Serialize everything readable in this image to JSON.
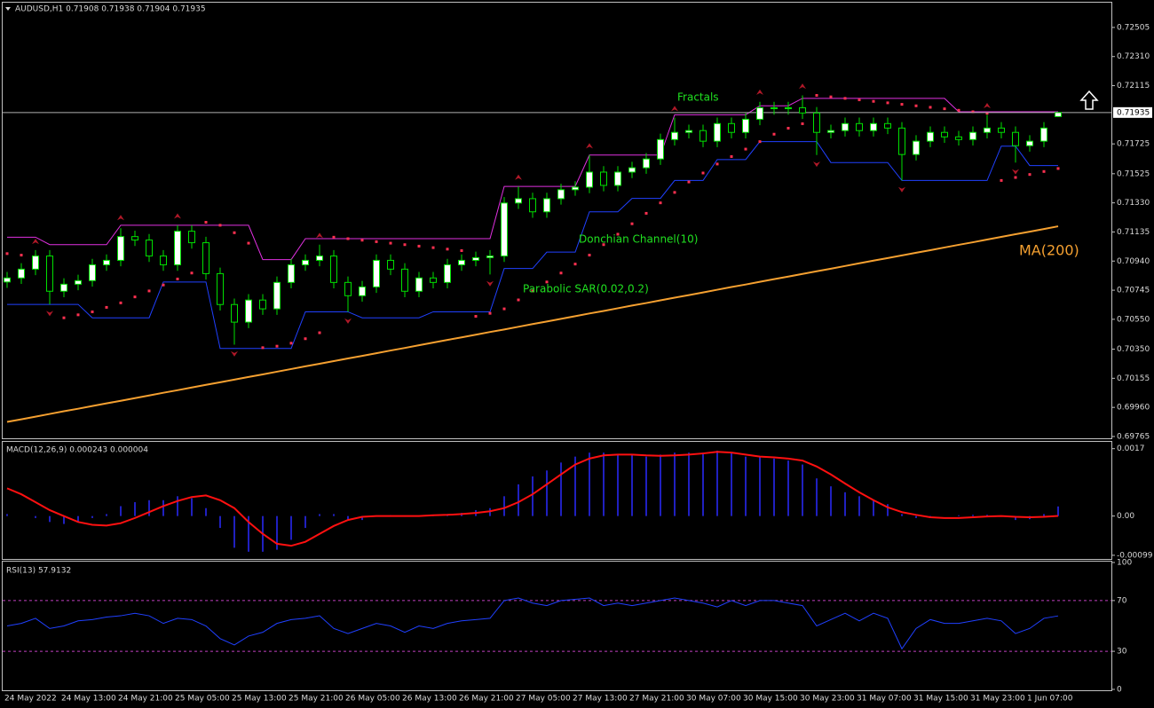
{
  "chart_data": [
    {
      "type": "candlestick",
      "title": "AUDUSD,H1  0.71908 0.71938 0.71904 0.71935",
      "categories": [
        "24 May 2022",
        null,
        null,
        null,
        "24 May 13:00",
        null,
        null,
        null,
        "24 May 21:00",
        null,
        null,
        null,
        "25 May 05:00",
        null,
        null,
        null,
        "25 May 13:00",
        null,
        null,
        null,
        "25 May 21:00",
        null,
        null,
        null,
        "26 May 05:00",
        null,
        null,
        null,
        "26 May 13:00",
        null,
        null,
        null,
        "26 May 21:00",
        null,
        null,
        null,
        "27 May 05:00",
        null,
        null,
        null,
        "27 May 13:00",
        null,
        null,
        null,
        "27 May 21:00",
        null,
        null,
        null,
        "30 May 07:00",
        null,
        null,
        null,
        "30 May 15:00",
        null,
        null,
        null,
        "30 May 23:00",
        null,
        null,
        null,
        "31 May 07:00",
        null,
        null,
        null,
        "31 May 15:00",
        null,
        null,
        null,
        "31 May 23:00",
        null,
        null,
        null,
        "1 Jun 07:00",
        null,
        null
      ],
      "open": [
        0.708,
        0.70827,
        0.70886,
        0.70974,
        0.70738,
        0.70785,
        0.70809,
        0.70915,
        0.70945,
        0.71104,
        0.71081,
        0.70974,
        0.70915,
        0.7114,
        0.71063,
        0.70856,
        0.70649,
        0.70531,
        0.70679,
        0.7062,
        0.70797,
        0.70915,
        0.70945,
        0.70974,
        0.70797,
        0.70708,
        0.70767,
        0.70945,
        0.70886,
        0.70738,
        0.70827,
        0.70797,
        0.70915,
        0.70945,
        0.70963,
        0.70974,
        0.71329,
        0.71358,
        0.7127,
        0.71358,
        0.71418,
        0.71435,
        0.71536,
        0.71447,
        0.71536,
        0.71565,
        0.71624,
        0.71754,
        0.71802,
        0.71814,
        0.71743,
        0.71861,
        0.71802,
        0.7189,
        0.71967,
        0.71961,
        0.71967,
        0.71932,
        0.71802,
        0.71814,
        0.71861,
        0.71814,
        0.71861,
        0.71831,
        0.71654,
        0.71743,
        0.71802,
        0.71772,
        0.71754,
        0.71802,
        0.71831,
        0.71802,
        0.71713,
        0.71743,
        0.71908
      ],
      "high": [
        0.70867,
        0.70926,
        0.71014,
        0.71014,
        0.70825,
        0.70849,
        0.70955,
        0.70985,
        0.7116,
        0.71144,
        0.71121,
        0.71014,
        0.7118,
        0.7118,
        0.71103,
        0.70896,
        0.70689,
        0.70719,
        0.70719,
        0.70837,
        0.70955,
        0.70985,
        0.7105,
        0.71014,
        0.70837,
        0.70807,
        0.70985,
        0.70985,
        0.70926,
        0.70867,
        0.70867,
        0.70955,
        0.70985,
        0.71003,
        0.71014,
        0.71369,
        0.7144,
        0.71398,
        0.71398,
        0.71458,
        0.71475,
        0.7165,
        0.71576,
        0.71576,
        0.71605,
        0.71664,
        0.71794,
        0.719,
        0.71854,
        0.71854,
        0.71901,
        0.71901,
        0.7193,
        0.72007,
        0.72007,
        0.72007,
        0.7205,
        0.71972,
        0.71854,
        0.71901,
        0.71901,
        0.71901,
        0.71901,
        0.71871,
        0.71783,
        0.71842,
        0.71842,
        0.71812,
        0.71842,
        0.7192,
        0.71871,
        0.71842,
        0.71783,
        0.71871,
        0.71938
      ],
      "low": [
        0.7076,
        0.70787,
        0.70846,
        0.7065,
        0.70698,
        0.70745,
        0.70769,
        0.70875,
        0.70905,
        0.71041,
        0.70934,
        0.70875,
        0.70875,
        0.71023,
        0.70816,
        0.70609,
        0.7038,
        0.70491,
        0.7058,
        0.7058,
        0.70757,
        0.70875,
        0.70905,
        0.70757,
        0.706,
        0.70668,
        0.70727,
        0.70846,
        0.70698,
        0.70698,
        0.70757,
        0.70757,
        0.70875,
        0.70905,
        0.7085,
        0.70934,
        0.71289,
        0.7123,
        0.7123,
        0.71318,
        0.71378,
        0.71395,
        0.71407,
        0.71407,
        0.71496,
        0.71525,
        0.71584,
        0.71714,
        0.71762,
        0.71703,
        0.71703,
        0.71762,
        0.71762,
        0.7185,
        0.71921,
        0.71921,
        0.71892,
        0.7165,
        0.71762,
        0.71774,
        0.71774,
        0.71774,
        0.71791,
        0.7148,
        0.71614,
        0.71703,
        0.71732,
        0.71714,
        0.71714,
        0.71762,
        0.71762,
        0.716,
        0.71673,
        0.71703,
        0.71904
      ],
      "close": [
        0.70827,
        0.70886,
        0.70974,
        0.70738,
        0.70785,
        0.70809,
        0.70915,
        0.70945,
        0.71104,
        0.71081,
        0.70974,
        0.70915,
        0.7114,
        0.71063,
        0.70856,
        0.70649,
        0.70531,
        0.70679,
        0.7062,
        0.70797,
        0.70915,
        0.70945,
        0.70974,
        0.70797,
        0.70708,
        0.70767,
        0.70945,
        0.70886,
        0.70738,
        0.70827,
        0.70797,
        0.70915,
        0.70945,
        0.70963,
        0.70974,
        0.71329,
        0.71358,
        0.7127,
        0.71358,
        0.71418,
        0.71435,
        0.71536,
        0.71447,
        0.71536,
        0.71565,
        0.71624,
        0.71754,
        0.71802,
        0.71814,
        0.71743,
        0.71861,
        0.71802,
        0.7189,
        0.71967,
        0.71961,
        0.71967,
        0.71932,
        0.71802,
        0.71814,
        0.71861,
        0.71814,
        0.71861,
        0.71831,
        0.71654,
        0.71743,
        0.71802,
        0.71772,
        0.71754,
        0.71802,
        0.71831,
        0.71802,
        0.71713,
        0.71743,
        0.71831,
        0.71935
      ],
      "up_color": "#ffffff",
      "down_color": "#000000",
      "candle_stroke": "#00e000",
      "ma": {
        "name": "MA(200)",
        "color": "#f5a030",
        "values": [
          0.69863,
          0.6988,
          0.69898,
          0.69916,
          0.69934,
          0.69951,
          0.69969,
          0.69987,
          0.70004,
          0.70022,
          0.7004,
          0.70058,
          0.70075,
          0.70093,
          0.70111,
          0.70128,
          0.70146,
          0.70164,
          0.70181,
          0.70199,
          0.70217,
          0.70235,
          0.70252,
          0.7027,
          0.70288,
          0.70305,
          0.70323,
          0.70341,
          0.70358,
          0.70376,
          0.70394,
          0.70412,
          0.70429,
          0.70447,
          0.70465,
          0.70482,
          0.705,
          0.70518,
          0.70535,
          0.70553,
          0.70571,
          0.70589,
          0.70606,
          0.70624,
          0.70642,
          0.70659,
          0.70677,
          0.70695,
          0.70712,
          0.7073,
          0.70748,
          0.70766,
          0.70783,
          0.70801,
          0.70819,
          0.70836,
          0.70854,
          0.70872,
          0.70889,
          0.70907,
          0.70925,
          0.70943,
          0.7096,
          0.70978,
          0.70996,
          0.71013,
          0.71031,
          0.71049,
          0.71066,
          0.71084,
          0.71102,
          0.7112,
          0.71137,
          0.71155,
          0.71173
        ]
      },
      "donchian": {
        "name": "Donchian Channel(10)",
        "upper_color": "#e030e0",
        "lower_color": "#2040ff",
        "upper": [
          0.711,
          0.711,
          0.711,
          0.7105,
          0.7105,
          0.7105,
          0.7105,
          0.7105,
          0.7118,
          0.7118,
          0.7118,
          0.7118,
          0.7118,
          0.7118,
          0.7118,
          0.7118,
          0.7118,
          0.7118,
          0.7095,
          0.7095,
          0.7095,
          0.7109,
          0.7109,
          0.7109,
          0.7109,
          0.7109,
          0.7109,
          0.7109,
          0.7109,
          0.7109,
          0.7109,
          0.7109,
          0.7109,
          0.7109,
          0.7109,
          0.7144,
          0.7144,
          0.7144,
          0.7144,
          0.7144,
          0.7144,
          0.7165,
          0.7165,
          0.7165,
          0.7165,
          0.7165,
          0.7165,
          0.7192,
          0.7192,
          0.7192,
          0.7192,
          0.7192,
          0.7192,
          0.7198,
          0.7198,
          0.7198,
          0.7203,
          0.7203,
          0.7203,
          0.7203,
          0.7203,
          0.7203,
          0.7203,
          0.7203,
          0.7203,
          0.7203,
          0.7203,
          0.7194,
          0.7194,
          0.7194,
          0.7194,
          0.7194,
          0.7194,
          0.7194,
          0.7194
        ],
        "lower": [
          0.7065,
          0.7065,
          0.7065,
          0.7065,
          0.7065,
          0.7065,
          0.7056,
          0.7056,
          0.7056,
          0.7056,
          0.7056,
          0.708,
          0.708,
          0.708,
          0.708,
          0.70355,
          0.70355,
          0.70355,
          0.70355,
          0.70355,
          0.70355,
          0.706,
          0.706,
          0.706,
          0.706,
          0.7056,
          0.7056,
          0.7056,
          0.7056,
          0.7056,
          0.706,
          0.706,
          0.706,
          0.706,
          0.706,
          0.7089,
          0.7089,
          0.7089,
          0.71,
          0.71,
          0.71,
          0.7127,
          0.7127,
          0.7127,
          0.7136,
          0.7136,
          0.7136,
          0.7148,
          0.7148,
          0.7148,
          0.7162,
          0.7162,
          0.7162,
          0.7174,
          0.7174,
          0.7174,
          0.7174,
          0.7174,
          0.716,
          0.716,
          0.716,
          0.716,
          0.716,
          0.7148,
          0.7148,
          0.7148,
          0.7148,
          0.7148,
          0.7148,
          0.7148,
          0.7171,
          0.7171,
          0.7158,
          0.7158,
          0.7158
        ]
      },
      "sar": {
        "name": "Parabolic SAR(0.02,0.2)",
        "color": "#ff3050",
        "values": [
          0.7099,
          0.7098,
          0.7097,
          0.7096,
          0.7056,
          0.7058,
          0.706,
          0.7063,
          0.7066,
          0.707,
          0.7074,
          0.7078,
          0.7082,
          0.7086,
          0.712,
          0.7118,
          0.7113,
          0.7106,
          0.7036,
          0.7037,
          0.7039,
          0.7042,
          0.7046,
          0.711,
          0.7109,
          0.7108,
          0.7107,
          0.7106,
          0.7105,
          0.7104,
          0.7103,
          0.7102,
          0.7101,
          0.7057,
          0.7059,
          0.7062,
          0.7068,
          0.7074,
          0.708,
          0.7086,
          0.7092,
          0.7098,
          0.7105,
          0.7112,
          0.7119,
          0.7126,
          0.7133,
          0.714,
          0.7147,
          0.7153,
          0.7159,
          0.7164,
          0.7169,
          0.7174,
          0.7179,
          0.7183,
          0.7186,
          0.7205,
          0.7204,
          0.7203,
          0.7202,
          0.7201,
          0.72,
          0.7199,
          0.7198,
          0.7197,
          0.7196,
          0.7195,
          0.7194,
          0.7193,
          0.7148,
          0.715,
          0.7152,
          0.7154,
          0.7156
        ]
      },
      "fractals": {
        "name": "Fractals",
        "color": "#b01828",
        "up": [
          null,
          null,
          0.7103,
          null,
          null,
          null,
          null,
          null,
          0.7119,
          null,
          null,
          null,
          0.712,
          null,
          null,
          null,
          null,
          null,
          null,
          null,
          null,
          null,
          0.7107,
          null,
          null,
          null,
          null,
          null,
          null,
          null,
          null,
          null,
          null,
          null,
          null,
          null,
          0.7146,
          null,
          null,
          null,
          null,
          0.7167,
          null,
          null,
          null,
          null,
          null,
          0.7192,
          null,
          null,
          null,
          null,
          null,
          0.7203,
          null,
          null,
          0.7207,
          null,
          null,
          null,
          null,
          null,
          null,
          null,
          null,
          null,
          null,
          null,
          null,
          0.7194,
          null,
          null,
          null,
          null,
          null
        ],
        "down": [
          null,
          null,
          null,
          0.7063,
          null,
          null,
          null,
          null,
          null,
          null,
          null,
          null,
          null,
          null,
          null,
          null,
          0.7036,
          null,
          null,
          null,
          null,
          null,
          null,
          null,
          0.7058,
          null,
          null,
          null,
          null,
          null,
          null,
          null,
          null,
          null,
          0.7083,
          null,
          null,
          null,
          null,
          null,
          null,
          null,
          null,
          null,
          null,
          null,
          null,
          null,
          null,
          null,
          null,
          null,
          null,
          null,
          null,
          null,
          null,
          0.7163,
          null,
          null,
          null,
          null,
          null,
          0.7146,
          null,
          null,
          null,
          null,
          null,
          null,
          null,
          0.7158,
          null,
          null,
          null
        ]
      },
      "ylim": [
        0.69753,
        0.72665
      ],
      "yticks": [
        0.72505,
        {
          "value": 0.7231,
          "label": "0.72310"
        },
        0.72115,
        0.71725,
        0.71525,
        {
          "value": 0.7133,
          "label": "0.71330"
        },
        0.71135,
        {
          "value": 0.7094,
          "label": "0.70940"
        },
        0.70745,
        {
          "value": 0.7055,
          "label": "0.70550"
        },
        {
          "value": 0.7035,
          "label": "0.70350"
        },
        0.70155,
        {
          "value": 0.6996,
          "label": "0.69960"
        },
        0.69765
      ]
    },
    {
      "type": "macd",
      "title": "MACD(12,26,9) 0.000243 0.000004",
      "histogram": [
        5e-05,
        0,
        -5e-05,
        -0.00015,
        -0.0002,
        -0.00015,
        -5e-05,
        5e-05,
        0.00025,
        0.00035,
        0.0004,
        0.0004,
        0.0005,
        0.00045,
        0.0002,
        -0.0003,
        -0.0008,
        -0.0009,
        -0.0009,
        -0.00085,
        -0.0006,
        -0.0003,
        5e-05,
        5e-05,
        -0.0001,
        -0.0001,
        0,
        2e-05,
        -2e-05,
        0,
        3e-05,
        5e-05,
        8e-05,
        0.00015,
        0.0002,
        0.0005,
        0.0008,
        0.001,
        0.00115,
        0.00135,
        0.0015,
        0.0016,
        0.0016,
        0.00155,
        0.00155,
        0.0015,
        0.00155,
        0.0016,
        0.0016,
        0.0016,
        0.00165,
        0.0016,
        0.0015,
        0.0015,
        0.00145,
        0.0014,
        0.0013,
        0.00095,
        0.00075,
        0.0006,
        0.0005,
        0.0004,
        0.0003,
        5e-05,
        -5e-05,
        -5e-05,
        0,
        2e-05,
        3e-05,
        3e-05,
        0,
        -0.0001,
        -8e-05,
        5e-05,
        0.000243
      ],
      "histogram_color": "#2a2aff",
      "signal": [
        0.0007,
        0.00055,
        0.00035,
        0.00015,
        0,
        -0.00015,
        -0.00022,
        -0.00024,
        -0.00018,
        -5e-05,
        0.0001,
        0.00025,
        0.00038,
        0.00048,
        0.00052,
        0.0004,
        0.0002,
        -0.00015,
        -0.00045,
        -0.0007,
        -0.00075,
        -0.00065,
        -0.00045,
        -0.00025,
        -0.0001,
        -2e-05,
        0,
        0,
        0,
        0,
        2e-05,
        3e-05,
        5e-05,
        8e-05,
        0.00012,
        0.0002,
        0.00035,
        0.00055,
        0.0008,
        0.00105,
        0.0013,
        0.00145,
        0.00153,
        0.00155,
        0.00155,
        0.00153,
        0.00152,
        0.00153,
        0.00155,
        0.00158,
        0.00162,
        0.0016,
        0.00155,
        0.0015,
        0.00148,
        0.00145,
        0.0014,
        0.00125,
        0.00105,
        0.00082,
        0.0006,
        0.0004,
        0.00022,
        0.0001,
        3e-05,
        -3e-05,
        -5e-05,
        -5e-05,
        -3e-05,
        -1e-05,
        0,
        -2e-05,
        -3e-05,
        -2e-05,
        4e-06
      ],
      "signal_color": "#ff1010",
      "ylim": [
        -0.00106,
        0.00185
      ],
      "yticks": [
        0.0017,
        {
          "value": 0,
          "label": "0.00"
        },
        -0.00099
      ]
    },
    {
      "type": "rsi",
      "title": "RSI(13) 57.9132",
      "values": [
        50,
        52,
        56,
        48,
        50,
        54,
        55,
        57,
        58,
        60,
        58,
        52,
        56,
        55,
        50,
        40,
        35,
        42,
        45,
        52,
        55,
        56,
        58,
        48,
        44,
        48,
        52,
        50,
        45,
        50,
        48,
        52,
        54,
        55,
        56,
        70,
        72,
        68,
        66,
        70,
        71,
        72,
        66,
        68,
        66,
        68,
        70,
        72,
        70,
        68,
        65,
        70,
        66,
        70,
        70,
        68,
        66,
        50,
        55,
        60,
        54,
        60,
        56,
        32,
        48,
        55,
        52,
        52,
        54,
        56,
        54,
        44,
        48,
        56,
        57.9132
      ],
      "color": "#2040ff",
      "levels": [
        70,
        30
      ],
      "level_color": "#c040c0",
      "ylim": [
        0,
        100
      ],
      "yticks": [
        100,
        70,
        30,
        0
      ]
    }
  ]
}
